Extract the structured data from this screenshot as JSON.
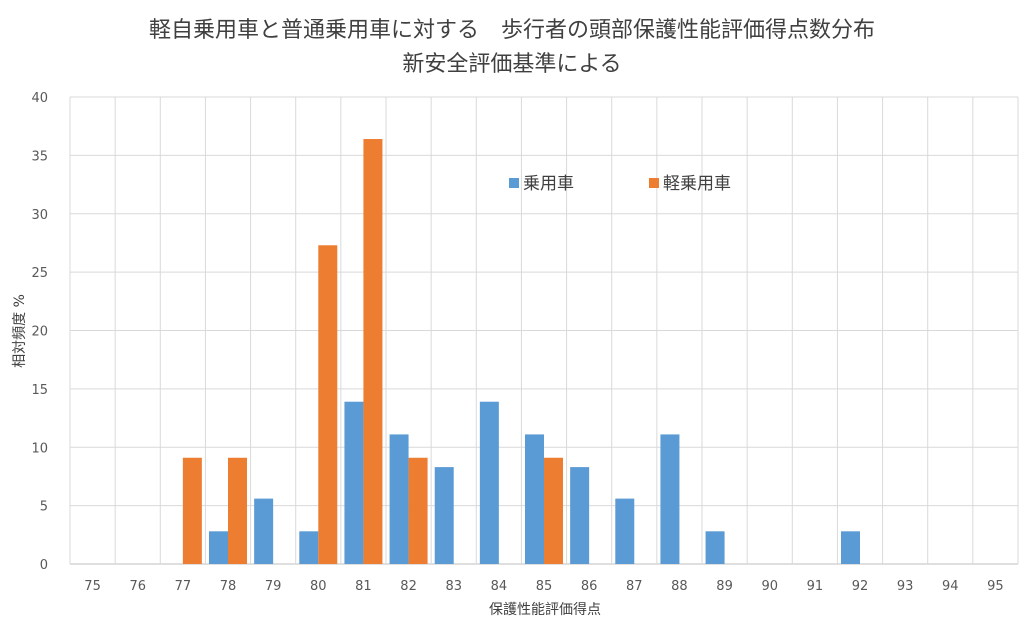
{
  "chart_data": {
    "type": "bar",
    "title": "軽自乗用車と普通乗用車に対する　歩行者の頭部保護性能評価得点数分布",
    "subtitle": "新安全評価基準による",
    "xlabel": "保護性能評価得点",
    "ylabel": "相対頻度 %",
    "ylim": [
      0,
      40
    ],
    "yticks": [
      0,
      5,
      10,
      15,
      20,
      25,
      30,
      35,
      40
    ],
    "grid": true,
    "legend_position": "top-right",
    "categories": [
      "75",
      "76",
      "77",
      "78",
      "79",
      "80",
      "81",
      "82",
      "83",
      "84",
      "85",
      "86",
      "87",
      "88",
      "89",
      "90",
      "91",
      "92",
      "93",
      "94",
      "95"
    ],
    "series": [
      {
        "name": "乗用車",
        "color": "#5B9BD5",
        "values": [
          0,
          0,
          0,
          2.8,
          5.6,
          2.8,
          13.9,
          11.1,
          8.3,
          13.9,
          11.1,
          8.3,
          5.6,
          11.1,
          2.8,
          0,
          0,
          2.8,
          0,
          0,
          0
        ]
      },
      {
        "name": "軽乗用車",
        "color": "#ED7D31",
        "values": [
          0,
          0,
          9.1,
          9.1,
          0,
          27.3,
          36.4,
          9.1,
          0,
          0,
          9.1,
          0,
          0,
          0,
          0,
          0,
          0,
          0,
          0,
          0,
          0
        ]
      }
    ]
  }
}
